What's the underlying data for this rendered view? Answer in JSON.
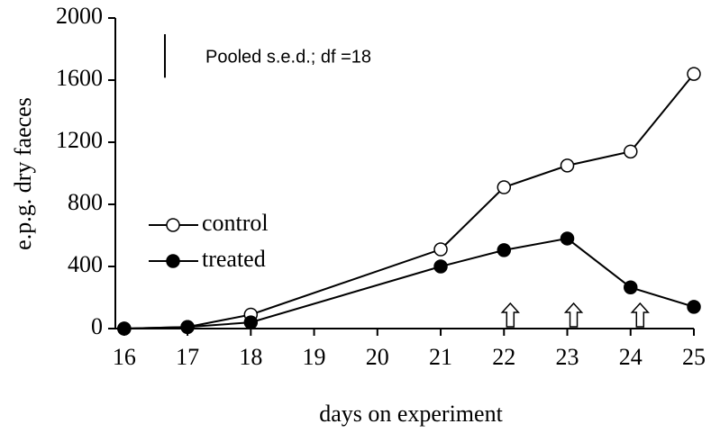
{
  "chart_data": {
    "type": "line",
    "xlabel": "days on experiment",
    "ylabel": "e.p.g. dry faeces",
    "annotation": "Pooled s.e.d.; df =18",
    "sed": 280,
    "arrows_x": [
      22.1,
      23.1,
      24.15
    ],
    "x": [
      16,
      17,
      18,
      21,
      22,
      23,
      24,
      25
    ],
    "series": [
      {
        "name": "control",
        "color": "#ffffff",
        "values": [
          0,
          10,
          90,
          510,
          910,
          1050,
          1140,
          1640
        ]
      },
      {
        "name": "treated",
        "color": "#000000",
        "values": [
          0,
          10,
          40,
          400,
          505,
          580,
          265,
          140
        ]
      }
    ],
    "xlim": [
      15.86,
      25
    ],
    "xticks": [
      16,
      17,
      18,
      19,
      20,
      21,
      22,
      23,
      24,
      25
    ],
    "ylim": [
      0,
      2000
    ],
    "yticks": [
      0,
      400,
      800,
      1200,
      1600,
      2000
    ],
    "legend": "center-left"
  }
}
